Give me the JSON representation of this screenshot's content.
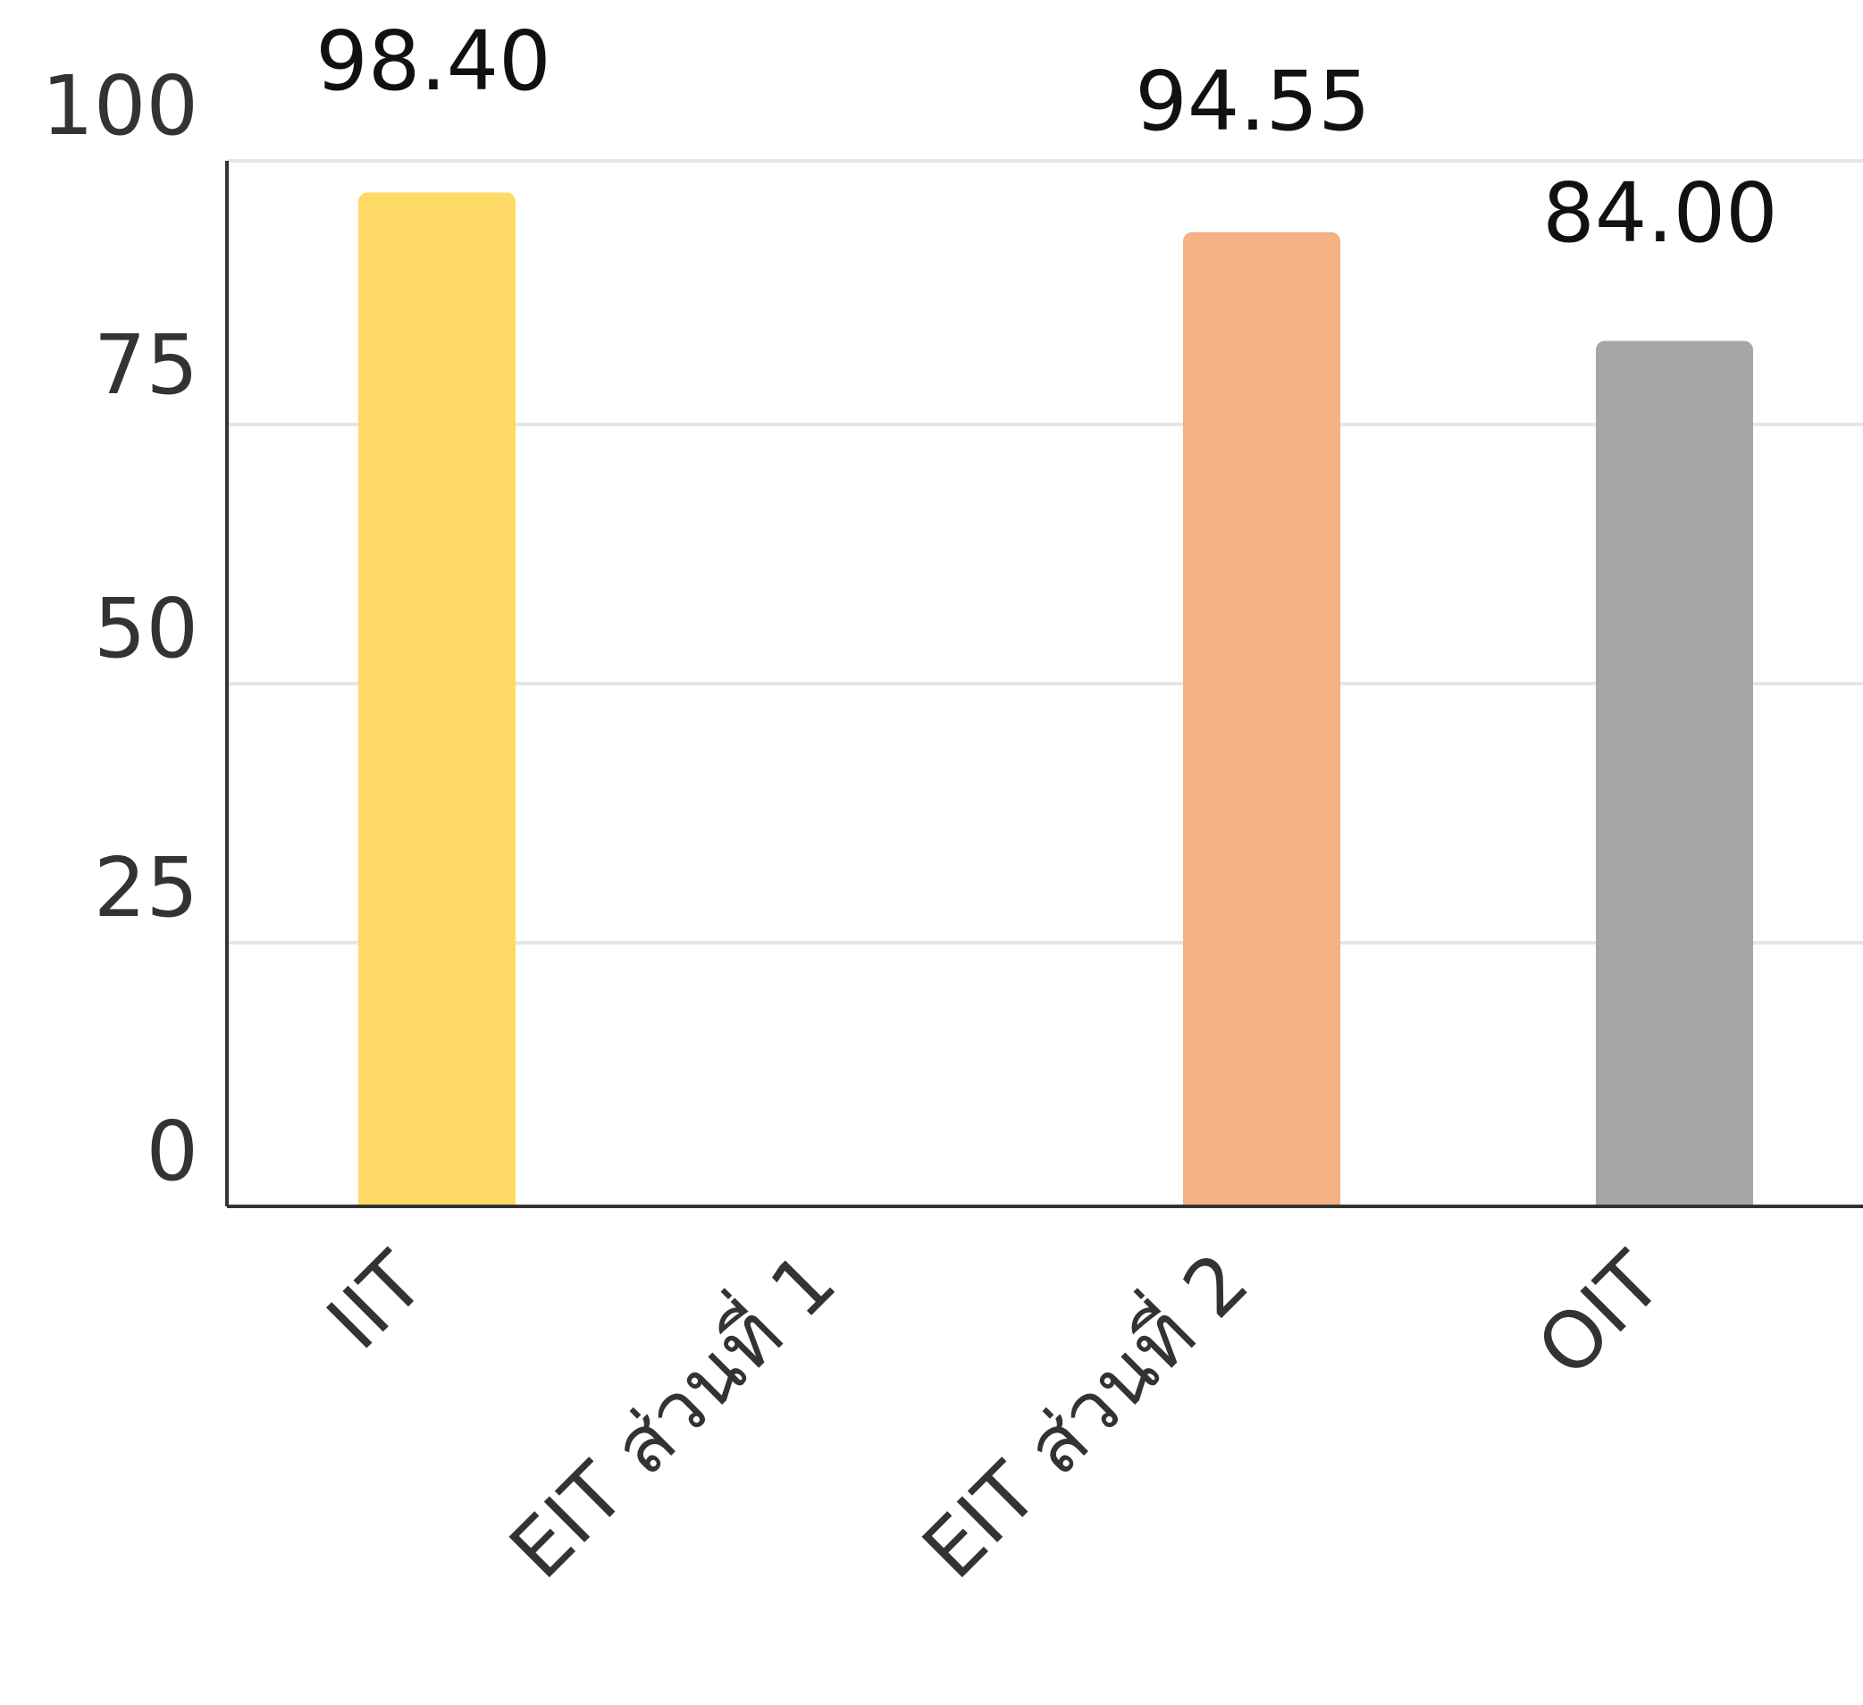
{
  "chart_data": {
    "type": "bar",
    "categories": [
      "IIT",
      "EIT ส่วนที่ 1",
      "EIT ส่วนที่ 2",
      "OIT"
    ],
    "values": [
      98.4,
      null,
      94.55,
      84.0
    ],
    "value_labels": [
      "98.40",
      "",
      "94.55",
      "84.00"
    ],
    "bar_colors": [
      "#FFD966",
      "#F4B183",
      "#F4B183",
      "#A6A6A6"
    ],
    "yticks": [
      "0",
      "25",
      "50",
      "75",
      "100"
    ],
    "ylim": [
      0,
      100
    ],
    "title": "",
    "xlabel": "",
    "ylabel": "",
    "grid": true,
    "grid_color": "#E6E6E6",
    "axis_color": "#333333"
  }
}
